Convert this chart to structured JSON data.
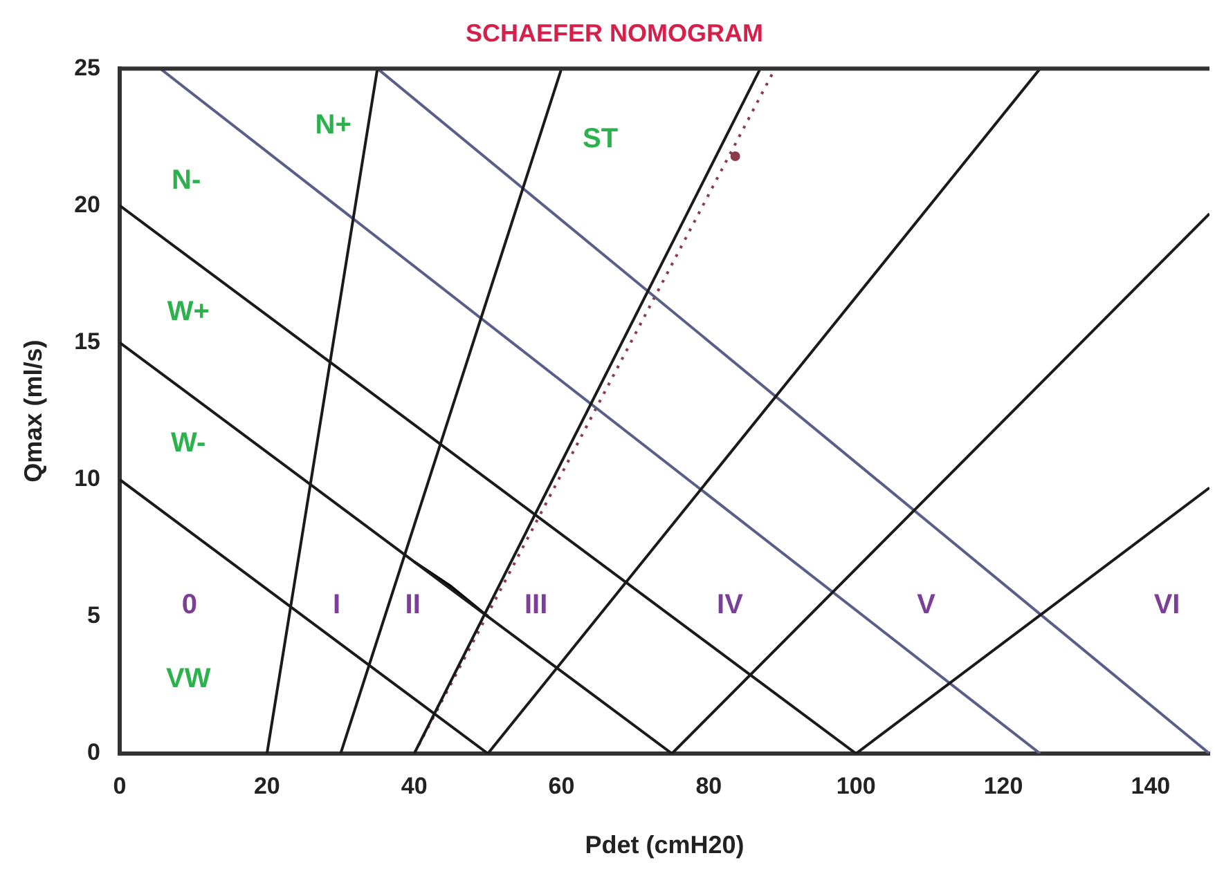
{
  "chart_data": {
    "type": "line",
    "title": "SCHAEFER NOMOGRAM",
    "xlabel": "Pdet (cmH20)",
    "ylabel": "Qmax (ml/s)",
    "xlim": [
      0,
      148
    ],
    "ylim": [
      0,
      25
    ],
    "xticks": [
      0,
      20,
      40,
      60,
      80,
      100,
      120,
      140
    ],
    "yticks": [
      0,
      5,
      10,
      15,
      20,
      25
    ],
    "grid": false,
    "series": [
      {
        "color": "#1a1a1a",
        "x": [
          20,
          35
        ],
        "values": [
          0,
          25
        ]
      },
      {
        "color": "#1a1a1a",
        "x": [
          30,
          60
        ],
        "values": [
          0,
          25
        ]
      },
      {
        "color": "#1a1a1a",
        "x": [
          40,
          87
        ],
        "values": [
          0,
          25
        ]
      },
      {
        "color": "#1a1a1a",
        "x": [
          50,
          125
        ],
        "values": [
          0,
          25
        ]
      },
      {
        "color": "#1a1a1a",
        "x": [
          75,
          148
        ],
        "values": [
          0,
          19.7
        ]
      },
      {
        "color": "#1a1a1a",
        "x": [
          100,
          148
        ],
        "values": [
          0,
          9.7
        ]
      },
      {
        "color": "#1a1a1a",
        "x": [
          0,
          50
        ],
        "values": [
          10,
          0
        ]
      },
      {
        "color": "#1a1a1a",
        "x": [
          0,
          75
        ],
        "values": [
          15,
          0
        ]
      },
      {
        "color": "#1a1a1a",
        "x": [
          0,
          100
        ],
        "values": [
          20,
          0
        ]
      },
      {
        "color": "#5a5f8a",
        "x": [
          5.5,
          125
        ],
        "values": [
          25,
          0
        ]
      },
      {
        "color": "#5a5f8a",
        "x": [
          35,
          148
        ],
        "values": [
          25,
          0
        ]
      },
      {
        "color": "#8c3b4b",
        "x": [
          40,
          89
        ],
        "values": [
          0,
          25
        ],
        "line_style": "dotted"
      },
      {
        "color": "#8c3b4b",
        "type": "scatter",
        "marker": "circle",
        "x": [
          83.6
        ],
        "values": [
          21.8
        ]
      },
      {
        "color": "#000000",
        "x": [
          40,
          45,
          50
        ],
        "values": [
          7,
          6.1,
          5
        ]
      }
    ],
    "annotations": [
      "N+",
      "N-",
      "W+",
      "W-",
      "VW",
      "ST",
      "0",
      "I",
      "II",
      "III",
      "IV",
      "V",
      "VI"
    ]
  }
}
